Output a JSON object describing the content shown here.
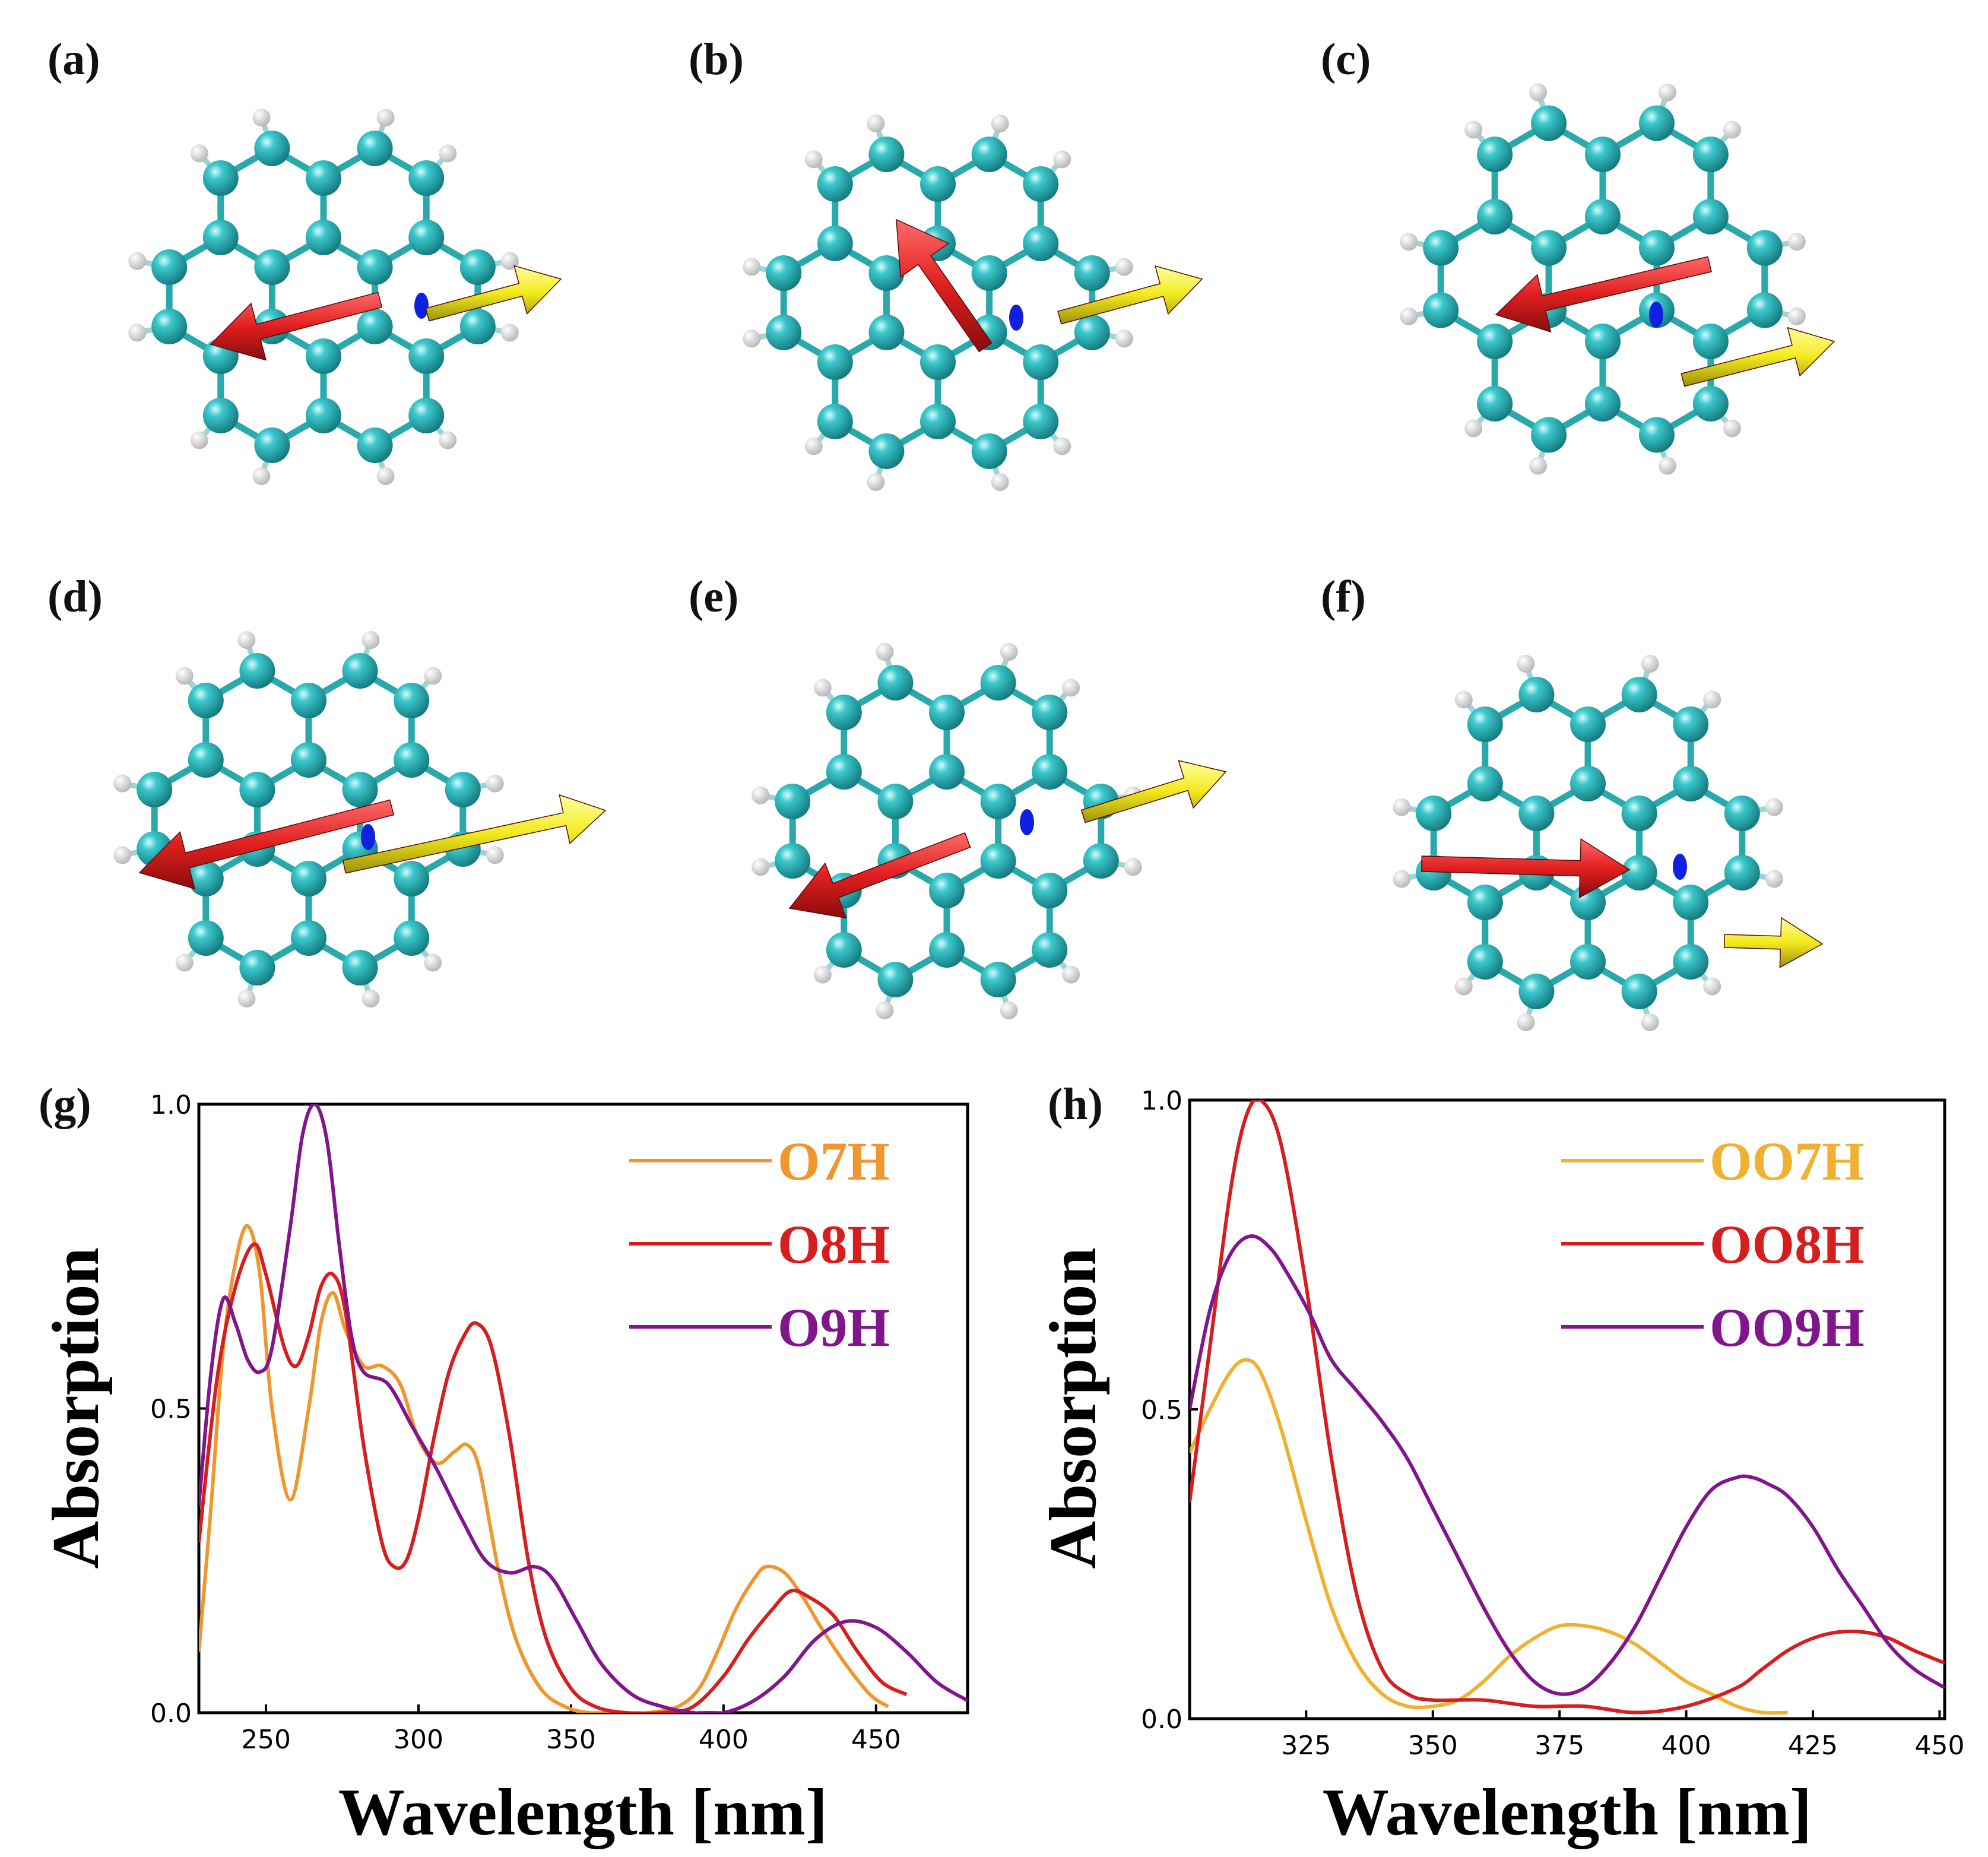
{
  "panels": [
    {
      "label": "(a)"
    },
    {
      "label": "(b)"
    },
    {
      "label": "(c)"
    },
    {
      "label": "(d)"
    },
    {
      "label": "(e)"
    },
    {
      "label": "(f)"
    }
  ],
  "colors": {
    "carbon": "#27b9bd",
    "hydrogen": "#f0f0f0",
    "arrow_red": "#e01f1f",
    "arrow_yellow": "#f2ea1c",
    "arrow_blue": "#1020e0",
    "O7": "#f0962e",
    "O8": "#d61e1e",
    "O9": "#80158c",
    "OO7": "#f0b030"
  },
  "molecule_icons": [
    "molecule-structure-icon",
    "dipole-arrow-icon"
  ],
  "chart_data": [
    {
      "type": "line",
      "label": "(g)",
      "xlabel": "Wavelength [nm]",
      "ylabel": "Absorption",
      "xlim": [
        228,
        480
      ],
      "ylim": [
        0,
        1
      ],
      "xticks": [
        250,
        300,
        350,
        400,
        450
      ],
      "yticks": [
        0.0,
        0.5,
        1.0
      ],
      "ytick_labels": [
        "0.0",
        "0.5",
        "1.0"
      ],
      "series": [
        {
          "name": "O7H",
          "color": "#f0962e",
          "x": [
            228,
            232,
            236,
            240,
            244,
            248,
            252,
            258,
            264,
            268,
            272,
            276,
            282,
            288,
            294,
            300,
            306,
            312,
            316,
            320,
            326,
            332,
            340,
            348,
            356,
            365,
            375,
            385,
            392,
            398,
            404,
            410,
            414,
            420,
            426,
            432,
            440,
            448,
            454
          ],
          "y": [
            0.1,
            0.34,
            0.6,
            0.74,
            0.8,
            0.72,
            0.5,
            0.35,
            0.5,
            0.64,
            0.69,
            0.63,
            0.57,
            0.57,
            0.54,
            0.45,
            0.41,
            0.43,
            0.44,
            0.4,
            0.24,
            0.12,
            0.04,
            0.01,
            0.0,
            0.0,
            0.0,
            0.01,
            0.04,
            0.1,
            0.17,
            0.22,
            0.24,
            0.23,
            0.19,
            0.14,
            0.08,
            0.03,
            0.01
          ]
        },
        {
          "name": "O8H",
          "color": "#d61e1e",
          "x": [
            228,
            234,
            240,
            246,
            250,
            256,
            260,
            264,
            268,
            272,
            276,
            282,
            288,
            292,
            296,
            300,
            305,
            310,
            315,
            319,
            324,
            330,
            336,
            342,
            350,
            358,
            368,
            380,
            390,
            400,
            408,
            416,
            422,
            428,
            436,
            444,
            452,
            460
          ],
          "y": [
            0.28,
            0.55,
            0.7,
            0.77,
            0.72,
            0.6,
            0.57,
            0.62,
            0.7,
            0.72,
            0.66,
            0.44,
            0.28,
            0.24,
            0.25,
            0.32,
            0.45,
            0.56,
            0.62,
            0.64,
            0.6,
            0.45,
            0.25,
            0.12,
            0.04,
            0.01,
            0.0,
            0.0,
            0.01,
            0.06,
            0.12,
            0.17,
            0.2,
            0.19,
            0.16,
            0.1,
            0.05,
            0.03
          ]
        },
        {
          "name": "O9H",
          "color": "#80158c",
          "x": [
            228,
            232,
            236,
            240,
            244,
            248,
            252,
            258,
            262,
            266,
            270,
            274,
            278,
            282,
            290,
            298,
            306,
            314,
            322,
            330,
            338,
            344,
            352,
            360,
            370,
            380,
            390,
            400,
            410,
            420,
            430,
            440,
            450,
            460,
            470,
            480
          ],
          "y": [
            0.34,
            0.56,
            0.68,
            0.64,
            0.58,
            0.56,
            0.6,
            0.8,
            0.95,
            1.0,
            0.94,
            0.77,
            0.62,
            0.56,
            0.54,
            0.47,
            0.4,
            0.32,
            0.25,
            0.23,
            0.24,
            0.22,
            0.15,
            0.08,
            0.03,
            0.01,
            0.0,
            0.0,
            0.02,
            0.06,
            0.12,
            0.15,
            0.14,
            0.1,
            0.05,
            0.02
          ]
        }
      ],
      "legend": [
        "O7H",
        "O8H",
        "O9H"
      ],
      "legend_position": "top-right"
    },
    {
      "type": "line",
      "label": "(h)",
      "xlabel": "Wavelength [nm]",
      "ylabel": "Absorption",
      "xlim": [
        302,
        451
      ],
      "ylim": [
        0,
        1
      ],
      "xticks": [
        325,
        350,
        375,
        400,
        425,
        450
      ],
      "yticks": [
        0.0,
        0.5,
        1.0
      ],
      "ytick_labels": [
        "0.0",
        "0.5",
        "1.0"
      ],
      "series": [
        {
          "name": "OO7H",
          "color": "#f0b030",
          "x": [
            302,
            306,
            310,
            313,
            316,
            320,
            325,
            330,
            335,
            340,
            345,
            350,
            355,
            360,
            365,
            370,
            375,
            380,
            385,
            390,
            395,
            400,
            405,
            410,
            415,
            420
          ],
          "y": [
            0.43,
            0.5,
            0.56,
            0.58,
            0.56,
            0.47,
            0.32,
            0.18,
            0.09,
            0.04,
            0.02,
            0.02,
            0.03,
            0.06,
            0.1,
            0.13,
            0.15,
            0.15,
            0.14,
            0.12,
            0.09,
            0.06,
            0.04,
            0.02,
            0.01,
            0.01
          ]
        },
        {
          "name": "OO8H",
          "color": "#d61e1e",
          "x": [
            302,
            306,
            310,
            313,
            316,
            320,
            325,
            330,
            335,
            340,
            345,
            350,
            360,
            370,
            380,
            390,
            400,
            410,
            415,
            420,
            425,
            430,
            435,
            440,
            445,
            451
          ],
          "y": [
            0.35,
            0.6,
            0.85,
            0.97,
            1.0,
            0.93,
            0.7,
            0.42,
            0.2,
            0.08,
            0.04,
            0.03,
            0.03,
            0.02,
            0.02,
            0.01,
            0.02,
            0.05,
            0.08,
            0.11,
            0.13,
            0.14,
            0.14,
            0.13,
            0.11,
            0.09
          ]
        },
        {
          "name": "OO9H",
          "color": "#80158c",
          "x": [
            302,
            306,
            310,
            314,
            318,
            322,
            326,
            330,
            335,
            340,
            345,
            350,
            355,
            360,
            365,
            370,
            375,
            380,
            385,
            390,
            395,
            400,
            405,
            410,
            413,
            416,
            420,
            425,
            430,
            435,
            440,
            445,
            451
          ],
          "y": [
            0.5,
            0.66,
            0.75,
            0.78,
            0.76,
            0.71,
            0.65,
            0.58,
            0.53,
            0.48,
            0.42,
            0.34,
            0.26,
            0.18,
            0.11,
            0.06,
            0.04,
            0.05,
            0.09,
            0.15,
            0.23,
            0.31,
            0.37,
            0.39,
            0.39,
            0.38,
            0.36,
            0.31,
            0.24,
            0.18,
            0.12,
            0.08,
            0.05
          ]
        }
      ],
      "legend": [
        "OO7H",
        "OO8H",
        "OO9H"
      ],
      "legend_position": "top-right"
    }
  ]
}
